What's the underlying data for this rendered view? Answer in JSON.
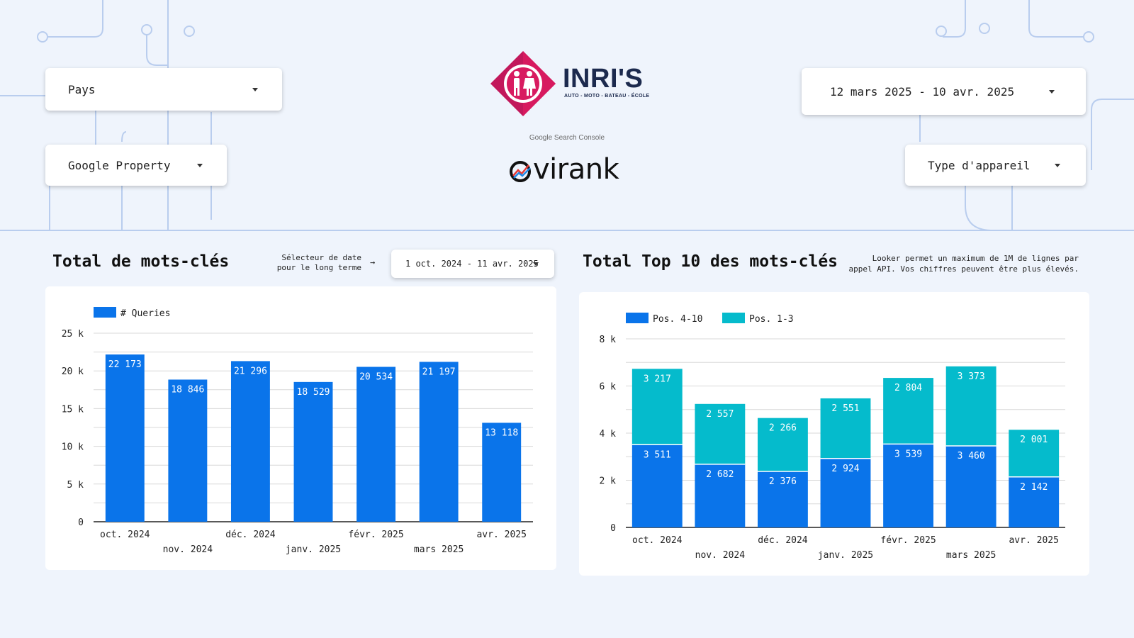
{
  "filters": {
    "pays_label": "Pays",
    "property_label": "Google Property",
    "date_range_value": "12 mars 2025 - 10 avr. 2025",
    "device_label": "Type d'appareil"
  },
  "branding": {
    "client_name": "INRI'S",
    "client_tagline": "AUTO - MOTO - BATEAU - ÉCOLE",
    "search_console_label": "Google Search Console",
    "agency_name": "virank"
  },
  "keywords_section": {
    "title": "Total de mots-clés",
    "long_term_label_line1": "Sélecteur de date",
    "long_term_label_line2": "pour le long terme",
    "arrow": "→",
    "long_term_range_value": "1 oct. 2024 - 11 avr. 2025"
  },
  "top10_section": {
    "title": "Total Top 10 des mots-clés",
    "api_note_line1": "Looker permet un maximum de 1M de lignes par",
    "api_note_line2": "appel API. Vos chiffres peuvent être plus élevés."
  },
  "colors": {
    "bar_primary": "#0a74ea",
    "bar_secondary": "#05bbcc",
    "brand_magenta": "#d81b60",
    "brand_navy": "#1c2a4e",
    "grid": "#d8d8d8",
    "bg_lines": "#b9cdee"
  },
  "icons": {
    "dropdown": "caret-down-icon",
    "client_logo": "inris-logo-icon",
    "agency_logo": "ovirank-logo-icon"
  },
  "chart_data": [
    {
      "type": "bar",
      "categories": [
        "oct. 2024",
        "nov. 2024",
        "déc. 2024",
        "janv. 2025",
        "févr. 2025",
        "mars 2025",
        "avr. 2025"
      ],
      "series": [
        {
          "name": "# Queries",
          "values": [
            22173,
            18846,
            21296,
            18529,
            20534,
            21197,
            13118
          ]
        }
      ],
      "data_labels": [
        "22 173",
        "18 846",
        "21 296",
        "18 529",
        "20 534",
        "21 197",
        "13 118"
      ],
      "yticks": [
        0,
        5000,
        10000,
        15000,
        20000,
        25000
      ],
      "ytick_labels": [
        "0",
        "5 k",
        "10 k",
        "15 k",
        "20 k",
        "25 k"
      ],
      "ylim": [
        0,
        25000
      ],
      "grid": true,
      "legend_position": "top-left"
    },
    {
      "type": "bar",
      "stacked": true,
      "categories": [
        "oct. 2024",
        "nov. 2024",
        "déc. 2024",
        "janv. 2025",
        "févr. 2025",
        "mars 2025",
        "avr. 2025"
      ],
      "series": [
        {
          "name": "Pos. 4-10",
          "values": [
            3511,
            2682,
            2376,
            2924,
            3539,
            3460,
            2142
          ],
          "labels": [
            "3 511",
            "2 682",
            "2 376",
            "2 924",
            "3 539",
            "3 460",
            "2 142"
          ]
        },
        {
          "name": "Pos. 1-3",
          "values": [
            3217,
            2557,
            2266,
            2551,
            2804,
            3373,
            2001
          ],
          "labels": [
            "3 217",
            "2 557",
            "2 266",
            "2 551",
            "2 804",
            "3 373",
            "2 001"
          ]
        }
      ],
      "yticks": [
        0,
        2000,
        4000,
        6000,
        8000
      ],
      "ytick_labels": [
        "0",
        "2 k",
        "4 k",
        "6 k",
        "8 k"
      ],
      "ylim": [
        0,
        8000
      ],
      "grid": true,
      "legend_position": "top-left"
    }
  ]
}
